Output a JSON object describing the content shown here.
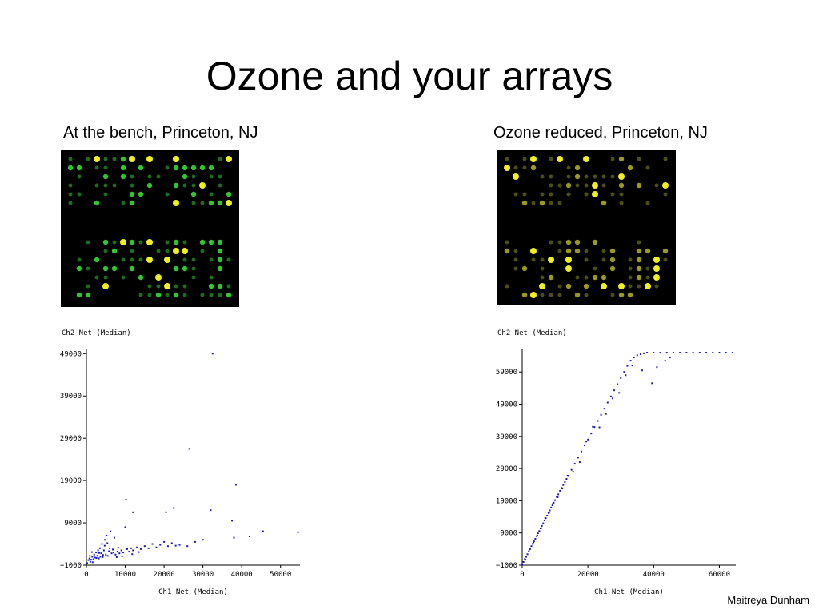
{
  "slide": {
    "title": "Ozone and your arrays",
    "left_caption": "At the bench, Princeton, NJ",
    "right_caption": "Ozone reduced, Princeton, NJ",
    "credit": "Maitreya Dunham"
  },
  "colors": {
    "point": "#1a1ab4",
    "spot_green": "#2ec82e",
    "spot_yellow": "#f0f020",
    "array_bg": "#000000"
  },
  "chart_data": [
    {
      "type": "scatter",
      "title": "",
      "xlabel": "Ch1 Net (Median)",
      "ylabel": "Ch2 Net (Median)",
      "xlim": [
        0,
        55000
      ],
      "ylim": [
        -1000,
        50000
      ],
      "xticks": [
        0,
        10000,
        20000,
        30000,
        40000,
        50000
      ],
      "yticks": [
        -1000,
        9000,
        19000,
        29000,
        39000,
        49000
      ],
      "grid": false,
      "points": [
        [
          200,
          -500
        ],
        [
          500,
          200
        ],
        [
          800,
          600
        ],
        [
          1000,
          -200
        ],
        [
          1200,
          300
        ],
        [
          1500,
          1000
        ],
        [
          1800,
          400
        ],
        [
          2000,
          1500
        ],
        [
          2200,
          800
        ],
        [
          2500,
          2000
        ],
        [
          2800,
          1200
        ],
        [
          3000,
          2500
        ],
        [
          3200,
          600
        ],
        [
          3500,
          3000
        ],
        [
          3800,
          1800
        ],
        [
          4000,
          4000
        ],
        [
          4200,
          900
        ],
        [
          4500,
          2500
        ],
        [
          4800,
          5000
        ],
        [
          5000,
          1500
        ],
        [
          5200,
          6000
        ],
        [
          5500,
          1200
        ],
        [
          6000,
          3000
        ],
        [
          6200,
          7000
        ],
        [
          6500,
          1800
        ],
        [
          7000,
          2000
        ],
        [
          7200,
          5500
        ],
        [
          7500,
          1500
        ],
        [
          8000,
          2200
        ],
        [
          8500,
          1800
        ],
        [
          9000,
          2500
        ],
        [
          9500,
          2000
        ],
        [
          10000,
          8000
        ],
        [
          10500,
          2800
        ],
        [
          11000,
          2200
        ],
        [
          11500,
          3000
        ],
        [
          12000,
          2500
        ],
        [
          13000,
          3200
        ],
        [
          14000,
          2800
        ],
        [
          15000,
          3500
        ],
        [
          16000,
          3000
        ],
        [
          17000,
          4000
        ],
        [
          18000,
          3200
        ],
        [
          19000,
          3800
        ],
        [
          20000,
          4500
        ],
        [
          21000,
          3500
        ],
        [
          22000,
          4200
        ],
        [
          23000,
          3600
        ],
        [
          24000,
          3800
        ],
        [
          26000,
          3500
        ],
        [
          28000,
          4500
        ],
        [
          30000,
          5000
        ],
        [
          3600,
          1000
        ],
        [
          4300,
          1400
        ],
        [
          5800,
          2300
        ],
        [
          6800,
          2700
        ],
        [
          8200,
          3100
        ],
        [
          9200,
          1100
        ],
        [
          1600,
          -300
        ],
        [
          2600,
          700
        ],
        [
          3300,
          1900
        ],
        [
          4700,
          3600
        ],
        [
          5400,
          4200
        ],
        [
          900,
          1200
        ],
        [
          1400,
          2100
        ],
        [
          7800,
          900
        ],
        [
          11800,
          1600
        ],
        [
          13500,
          2100
        ],
        [
          10200,
          14500
        ],
        [
          12000,
          11500
        ],
        [
          20500,
          11500
        ],
        [
          22500,
          12500
        ],
        [
          26500,
          26500
        ],
        [
          32000,
          12000
        ],
        [
          32500,
          49000
        ],
        [
          38500,
          18000
        ],
        [
          37500,
          9500
        ],
        [
          38000,
          5500
        ],
        [
          42000,
          5800
        ],
        [
          45500,
          7000
        ],
        [
          54500,
          6800
        ]
      ]
    },
    {
      "type": "scatter",
      "title": "",
      "xlabel": "Ch1 Net (Median)",
      "ylabel": "Ch2 Net (Median)",
      "xlim": [
        0,
        65000
      ],
      "ylim": [
        -1000,
        66000
      ],
      "xticks": [
        0,
        20000,
        40000,
        60000
      ],
      "yticks": [
        -1000,
        9000,
        19000,
        29000,
        39000,
        49000,
        59000
      ],
      "grid": false,
      "points": [
        [
          0,
          -800
        ],
        [
          400,
          0
        ],
        [
          800,
          900
        ],
        [
          1200,
          1600
        ],
        [
          1600,
          2400
        ],
        [
          2000,
          3300
        ],
        [
          2400,
          4000
        ],
        [
          2800,
          4900
        ],
        [
          3200,
          5600
        ],
        [
          3600,
          6400
        ],
        [
          4000,
          7200
        ],
        [
          4400,
          8000
        ],
        [
          4800,
          8900
        ],
        [
          5200,
          9600
        ],
        [
          5600,
          10400
        ],
        [
          6000,
          11200
        ],
        [
          6400,
          12000
        ],
        [
          6800,
          12900
        ],
        [
          7200,
          13600
        ],
        [
          7600,
          14400
        ],
        [
          8000,
          15200
        ],
        [
          8400,
          16000
        ],
        [
          8800,
          16900
        ],
        [
          9200,
          17600
        ],
        [
          9600,
          18400
        ],
        [
          10000,
          19200
        ],
        [
          10500,
          20200
        ],
        [
          11000,
          21000
        ],
        [
          11500,
          22100
        ],
        [
          12000,
          23000
        ],
        [
          12500,
          23900
        ],
        [
          13000,
          24800
        ],
        [
          13500,
          25800
        ],
        [
          14000,
          26700
        ],
        [
          15000,
          28600
        ],
        [
          16000,
          30500
        ],
        [
          17000,
          32400
        ],
        [
          18000,
          34300
        ],
        [
          19000,
          36200
        ],
        [
          20000,
          38000
        ],
        [
          21000,
          39900
        ],
        [
          22000,
          41900
        ],
        [
          23000,
          43800
        ],
        [
          24000,
          45700
        ],
        [
          25000,
          47600
        ],
        [
          26000,
          49500
        ],
        [
          27000,
          51400
        ],
        [
          28000,
          53300
        ],
        [
          29000,
          55200
        ],
        [
          30000,
          57100
        ],
        [
          31000,
          59000
        ],
        [
          32000,
          60900
        ],
        [
          33000,
          62500
        ],
        [
          34000,
          63500
        ],
        [
          35000,
          64200
        ],
        [
          36000,
          64500
        ],
        [
          37000,
          64800
        ],
        [
          38000,
          65000
        ],
        [
          40000,
          65000
        ],
        [
          42000,
          65000
        ],
        [
          44000,
          65000
        ],
        [
          46000,
          65000
        ],
        [
          48000,
          65000
        ],
        [
          50000,
          65000
        ],
        [
          52000,
          65000
        ],
        [
          54000,
          65000
        ],
        [
          56000,
          65000
        ],
        [
          58000,
          65000
        ],
        [
          60000,
          65000
        ],
        [
          62000,
          65000
        ],
        [
          64000,
          65000
        ],
        [
          1000,
          700
        ],
        [
          2200,
          3900
        ],
        [
          3400,
          6100
        ],
        [
          4600,
          8200
        ],
        [
          5800,
          10500
        ],
        [
          7000,
          13600
        ],
        [
          8200,
          15300
        ],
        [
          9400,
          18200
        ],
        [
          10800,
          20100
        ],
        [
          12200,
          22800
        ],
        [
          13800,
          26800
        ],
        [
          15500,
          28000
        ],
        [
          17500,
          31000
        ],
        [
          19500,
          37400
        ],
        [
          21500,
          42000
        ],
        [
          23500,
          41800
        ],
        [
          25500,
          46000
        ],
        [
          27500,
          50800
        ],
        [
          29500,
          52500
        ],
        [
          31500,
          58000
        ],
        [
          33500,
          61000
        ],
        [
          36500,
          59500
        ],
        [
          39500,
          55500
        ],
        [
          41000,
          60500
        ],
        [
          43500,
          62500
        ],
        [
          45000,
          63500
        ]
      ]
    }
  ]
}
